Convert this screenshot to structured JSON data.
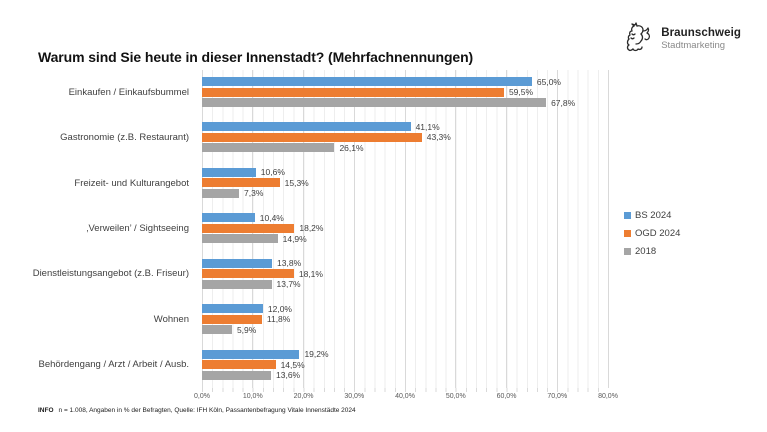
{
  "logo": {
    "name": "Braunschweig",
    "subtitle": "Stadtmarketing"
  },
  "chart_data": {
    "type": "bar",
    "orientation": "horizontal",
    "title": "Warum sind Sie heute in dieser Innenstadt? (Mehrfachnennungen)",
    "categories": [
      "Einkaufen / Einkaufsbummel",
      "Gastronomie (z.B. Restaurant)",
      "Freizeit- und Kulturangebot",
      "‚Verweilen’ / Sightseeing",
      "Dienstleistungsangebot (z.B. Friseur)",
      "Wohnen",
      "Behördengang / Arzt / Arbeit / Ausb."
    ],
    "series": [
      {
        "name": "BS 2024",
        "color": "#5B9BD5",
        "values": [
          65.0,
          41.1,
          10.6,
          10.4,
          13.8,
          12.0,
          19.2
        ],
        "labels": [
          "65,0%",
          "41,1%",
          "10,6%",
          "10,4%",
          "13,8%",
          "12,0%",
          "19,2%"
        ]
      },
      {
        "name": "OGD 2024",
        "color": "#ED7D31",
        "values": [
          59.5,
          43.3,
          15.3,
          18.2,
          18.1,
          11.8,
          14.5
        ],
        "labels": [
          "59,5%",
          "43,3%",
          "15,3%",
          "18,2%",
          "18,1%",
          "11,8%",
          "14,5%"
        ]
      },
      {
        "name": "2018",
        "color": "#A5A5A5",
        "values": [
          67.8,
          26.1,
          7.3,
          14.9,
          13.7,
          5.9,
          13.6
        ],
        "labels": [
          "67,8%",
          "26,1%",
          "7,3%",
          "14,9%",
          "13,7%",
          "5,9%",
          "13,6%"
        ]
      }
    ],
    "x_axis": {
      "min": 0,
      "max": 80,
      "step": 10,
      "ticks": [
        "0,0%",
        "10,0%",
        "20,0%",
        "30,0%",
        "40,0%",
        "50,0%",
        "60,0%",
        "70,0%",
        "80,0%"
      ]
    },
    "grid": true,
    "legend_position": "right"
  },
  "footer": {
    "info_label": "INFO",
    "text": "n = 1.008, Angaben in % der Befragten, Quelle: IFH Köln, Passantenbefragung Vitale Innenstädte 2024"
  }
}
